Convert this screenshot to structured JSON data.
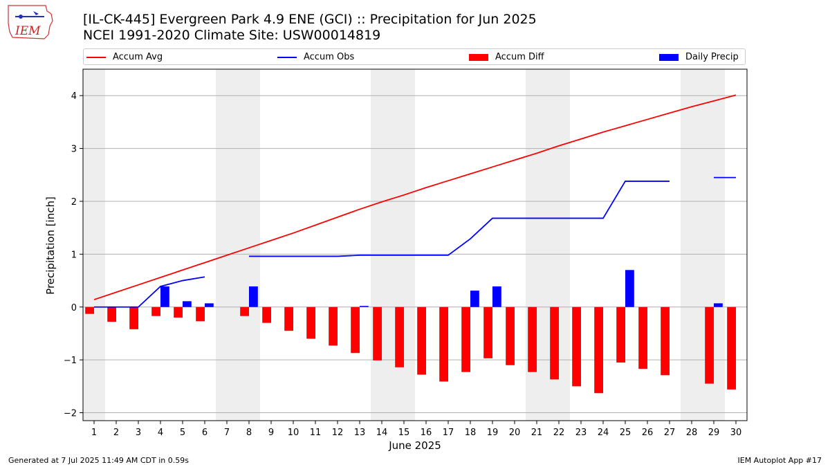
{
  "header": {
    "title_line1": "[IL-CK-445] Evergreen Park 4.9 ENE (GCI) :: Precipitation for Jun 2025",
    "title_line2": "NCEI 1991-2020 Climate Site: USW00014819",
    "logo_text": "IEM"
  },
  "footer": {
    "generated": "Generated at 7 Jul 2025 11:49 AM CDT in 0.59s",
    "app": "IEM Autoplot App #17"
  },
  "legend": [
    {
      "label": "Accum Avg",
      "kind": "line",
      "color": "#ff0000"
    },
    {
      "label": "Accum Obs",
      "kind": "line",
      "color": "#0000ff"
    },
    {
      "label": "Accum Diff",
      "kind": "box",
      "color": "#ff0000"
    },
    {
      "label": "Daily Precip",
      "kind": "box",
      "color": "#0000ff"
    }
  ],
  "chart_data": {
    "type": "bar",
    "xlabel": "June 2025",
    "ylabel": "Precipitation [inch]",
    "xlim": [
      0.5,
      30.5
    ],
    "ylim": [
      -2.15,
      4.5
    ],
    "yticks": [
      -2,
      -1,
      0,
      1,
      2,
      3,
      4
    ],
    "ytick_labels": [
      "−2",
      "−1",
      "0",
      "1",
      "2",
      "3",
      "4"
    ],
    "days": [
      1,
      2,
      3,
      4,
      5,
      6,
      7,
      8,
      9,
      10,
      11,
      12,
      13,
      14,
      15,
      16,
      17,
      18,
      19,
      20,
      21,
      22,
      23,
      24,
      25,
      26,
      27,
      28,
      29,
      30
    ],
    "weekend_shading": [
      [
        0.5,
        1.5
      ],
      [
        6.5,
        8.5
      ],
      [
        13.5,
        15.5
      ],
      [
        20.5,
        22.5
      ],
      [
        27.5,
        29.5
      ]
    ],
    "grid": "horizontal",
    "legend_position": "top",
    "series": [
      {
        "name": "Accum Avg",
        "type": "line",
        "color": "#ff0000",
        "values": [
          0.14,
          0.28,
          0.42,
          0.56,
          0.7,
          0.84,
          0.98,
          1.12,
          1.26,
          1.4,
          1.55,
          1.7,
          1.85,
          1.99,
          2.12,
          2.26,
          2.39,
          2.52,
          2.65,
          2.78,
          2.91,
          3.05,
          3.18,
          3.31,
          3.43,
          3.55,
          3.67,
          3.79,
          3.9,
          4.01
        ]
      },
      {
        "name": "Accum Obs",
        "type": "line",
        "color": "#0000ff",
        "values": [
          0.0,
          0.0,
          0.0,
          0.39,
          0.5,
          0.57,
          null,
          0.96,
          0.96,
          0.96,
          0.96,
          0.96,
          0.98,
          0.98,
          0.98,
          0.98,
          0.98,
          1.29,
          1.68,
          1.68,
          1.68,
          1.68,
          1.68,
          1.68,
          2.38,
          2.38,
          2.38,
          null,
          2.45,
          2.45
        ]
      },
      {
        "name": "Accum Diff",
        "type": "bar",
        "color": "#ff0000",
        "values": [
          -0.13,
          -0.28,
          -0.42,
          -0.17,
          -0.2,
          -0.27,
          null,
          -0.17,
          -0.3,
          -0.45,
          -0.6,
          -0.73,
          -0.87,
          -1.01,
          -1.14,
          -1.28,
          -1.41,
          -1.23,
          -0.97,
          -1.1,
          -1.23,
          -1.37,
          -1.5,
          -1.63,
          -1.05,
          -1.17,
          -1.29,
          null,
          -1.45,
          -1.56
        ]
      },
      {
        "name": "Daily Precip",
        "type": "bar",
        "color": "#0000ff",
        "values": [
          0,
          0,
          0,
          0.39,
          0.11,
          0.07,
          null,
          0.39,
          0,
          0,
          0,
          0,
          0.02,
          0,
          0,
          0,
          0,
          0.31,
          0.39,
          0,
          0,
          0,
          0,
          0,
          0.7,
          0,
          0,
          null,
          0.07,
          0
        ]
      }
    ]
  }
}
